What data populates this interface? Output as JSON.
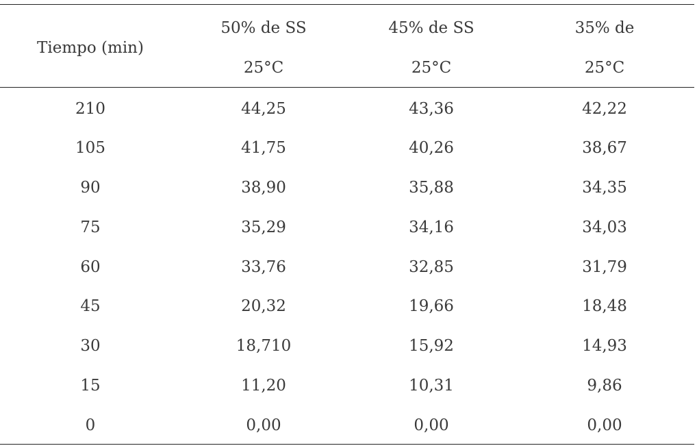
{
  "table": {
    "header": {
      "col1": "Tiempo (min)",
      "col2_line1": "50% de SS",
      "col2_line2": "25°C",
      "col3_line1": "45% de SS",
      "col3_line2": "25°C",
      "col4_line1": "35% de",
      "col4_line2": "25°C"
    },
    "rows": [
      [
        "210",
        "44,25",
        "43,36",
        "42,22"
      ],
      [
        "105",
        "41,75",
        "40,26",
        "38,67"
      ],
      [
        "90",
        "38,90",
        "35,88",
        "34,35"
      ],
      [
        "75",
        "35,29",
        "34,16",
        "34,03"
      ],
      [
        "60",
        "33,76",
        "32,85",
        "31,79"
      ],
      [
        "45",
        "20,32",
        "19,66",
        "18,48"
      ],
      [
        "30",
        "18,710",
        "15,92",
        "14,93"
      ],
      [
        "15",
        "11,20",
        "10,31",
        "9,86"
      ],
      [
        "0",
        "0,00",
        "0,00",
        "0,00"
      ]
    ]
  }
}
